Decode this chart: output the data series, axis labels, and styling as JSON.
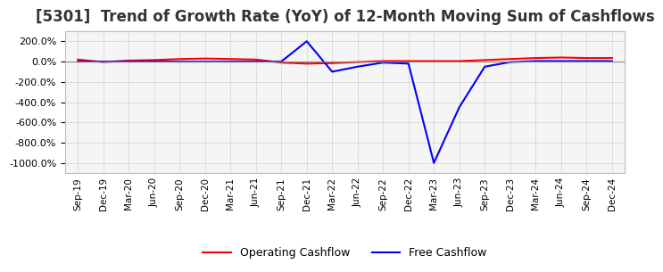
{
  "title": "[5301]  Trend of Growth Rate (YoY) of 12-Month Moving Sum of Cashflows",
  "title_fontsize": 12,
  "background_color": "#ffffff",
  "plot_bg_color": "#f5f5f5",
  "grid_color": "#aaaaaa",
  "ylim": [
    -1100,
    300
  ],
  "yticks": [
    200,
    0,
    -200,
    -400,
    -600,
    -800,
    -1000
  ],
  "x_labels": [
    "Sep-19",
    "Dec-19",
    "Mar-20",
    "Jun-20",
    "Sep-20",
    "Dec-20",
    "Mar-21",
    "Jun-21",
    "Sep-21",
    "Dec-21",
    "Mar-22",
    "Jun-22",
    "Sep-22",
    "Dec-22",
    "Mar-23",
    "Jun-23",
    "Sep-23",
    "Dec-23",
    "Mar-24",
    "Jun-24",
    "Sep-24",
    "Dec-24"
  ],
  "operating_cashflow": [
    20,
    -5,
    10,
    15,
    25,
    30,
    25,
    20,
    -10,
    -20,
    -15,
    -5,
    5,
    5,
    5,
    5,
    15,
    25,
    35,
    40,
    35,
    35
  ],
  "free_cashflow": [
    0,
    0,
    0,
    0,
    0,
    0,
    0,
    0,
    0,
    200,
    -100,
    -50,
    -10,
    -20,
    -1000,
    -450,
    -50,
    -5,
    5,
    5,
    5,
    5
  ],
  "op_color": "#ff0000",
  "free_color": "#0000ff",
  "legend_labels": [
    "Operating Cashflow",
    "Free Cashflow"
  ]
}
